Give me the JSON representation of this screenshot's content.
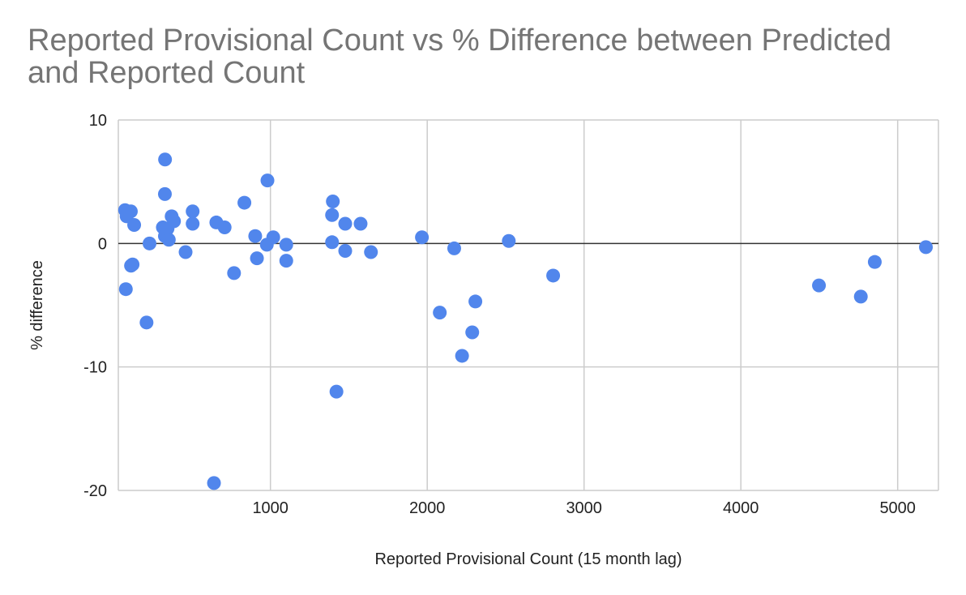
{
  "chart_data": {
    "type": "scatter",
    "title_lines": [
      "Reported Provisional Count vs % Difference between Predicted",
      "and Reported Count"
    ],
    "xlabel": "Reported Provisional Count (15 month lag)",
    "ylabel": "% difference",
    "xlim": [
      30,
      5260
    ],
    "ylim": [
      -20,
      10
    ],
    "x_ticks": [
      1000,
      2000,
      3000,
      4000,
      5000
    ],
    "x_tick_labels": [
      "1000",
      "2000",
      "3000",
      "4000",
      "5000"
    ],
    "y_ticks": [
      10,
      0,
      -10,
      -20
    ],
    "y_tick_labels": [
      "10",
      "0",
      "-10",
      "-20"
    ],
    "grid": true,
    "legend": "none",
    "marker_color": "#5186EC",
    "points": [
      {
        "x": 73,
        "y": 2.7
      },
      {
        "x": 83,
        "y": 2.2
      },
      {
        "x": 110,
        "y": 2.6
      },
      {
        "x": 131,
        "y": 1.5
      },
      {
        "x": 78,
        "y": -3.7
      },
      {
        "x": 111,
        "y": -1.8
      },
      {
        "x": 121,
        "y": -1.7
      },
      {
        "x": 210,
        "y": -6.4
      },
      {
        "x": 229,
        "y": 0.0
      },
      {
        "x": 314,
        "y": 1.3
      },
      {
        "x": 328,
        "y": 6.8
      },
      {
        "x": 327,
        "y": 4.0
      },
      {
        "x": 327,
        "y": 0.6
      },
      {
        "x": 344,
        "y": 1.2
      },
      {
        "x": 352,
        "y": 0.3
      },
      {
        "x": 370,
        "y": 2.2
      },
      {
        "x": 385,
        "y": 1.8
      },
      {
        "x": 459,
        "y": -0.7
      },
      {
        "x": 504,
        "y": 2.6
      },
      {
        "x": 504,
        "y": 1.6
      },
      {
        "x": 655,
        "y": 1.7
      },
      {
        "x": 640,
        "y": -19.4
      },
      {
        "x": 708,
        "y": 1.3
      },
      {
        "x": 768,
        "y": -2.4
      },
      {
        "x": 834,
        "y": 3.3
      },
      {
        "x": 903,
        "y": 0.6
      },
      {
        "x": 914,
        "y": -1.2
      },
      {
        "x": 981,
        "y": 5.1
      },
      {
        "x": 977,
        "y": -0.1
      },
      {
        "x": 1018,
        "y": 0.5
      },
      {
        "x": 1101,
        "y": -0.1
      },
      {
        "x": 1101,
        "y": -1.4
      },
      {
        "x": 1398,
        "y": 3.4
      },
      {
        "x": 1393,
        "y": 2.3
      },
      {
        "x": 1393,
        "y": 0.1
      },
      {
        "x": 1421,
        "y": -12.0
      },
      {
        "x": 1477,
        "y": 1.6
      },
      {
        "x": 1477,
        "y": -0.6
      },
      {
        "x": 1575,
        "y": 1.6
      },
      {
        "x": 1641,
        "y": -0.7
      },
      {
        "x": 1966,
        "y": 0.5
      },
      {
        "x": 2080,
        "y": -5.6
      },
      {
        "x": 2172,
        "y": -0.4
      },
      {
        "x": 2222,
        "y": -9.1
      },
      {
        "x": 2287,
        "y": -7.2
      },
      {
        "x": 2307,
        "y": -4.7
      },
      {
        "x": 2520,
        "y": 0.2
      },
      {
        "x": 2803,
        "y": -2.6
      },
      {
        "x": 4498,
        "y": -3.4
      },
      {
        "x": 4765,
        "y": -4.3
      },
      {
        "x": 4854,
        "y": -1.5
      },
      {
        "x": 5180,
        "y": -0.3
      }
    ]
  }
}
